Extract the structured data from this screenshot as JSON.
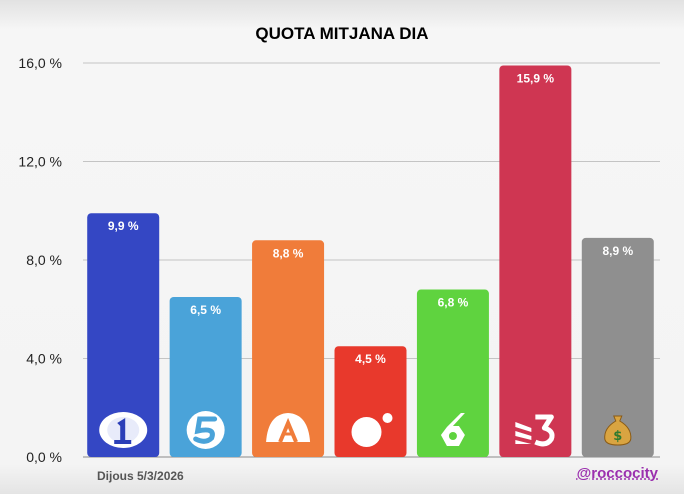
{
  "chart_data": {
    "type": "bar",
    "title": "QUOTA MITJANA DIA",
    "xlabel": "",
    "ylabel": "",
    "ylim": [
      0,
      16
    ],
    "yticks": [
      "0,0 %",
      "4,0 %",
      "8,0 %",
      "12,0 %",
      "16,0 %"
    ],
    "grid": true,
    "categories": [
      "La 1",
      "Telecinco",
      "Antena 3",
      "Cuatro",
      "laSexta",
      "TV3",
      "Otros"
    ],
    "values": [
      9.9,
      6.5,
      8.8,
      4.5,
      6.8,
      15.9,
      8.9
    ],
    "data_labels": [
      "9,9 %",
      "6,5 %",
      "8,8 %",
      "4,5 %",
      "6,8 %",
      "15,9 %",
      "8,9 %"
    ],
    "colors": [
      "#3447c4",
      "#4aa3d9",
      "#f07c3a",
      "#e8392c",
      "#5fd33f",
      "#cf3652",
      "#8f8f8f"
    ],
    "icons": [
      "la1-logo-icon",
      "telecinco-logo-icon",
      "antena3-logo-icon",
      "cuatro-logo-icon",
      "lasexta-logo-icon",
      "tv3-logo-icon",
      "money-bag-icon"
    ]
  },
  "footer": {
    "date": "Dijous 5/3/2026",
    "handle": "@roccocity"
  }
}
